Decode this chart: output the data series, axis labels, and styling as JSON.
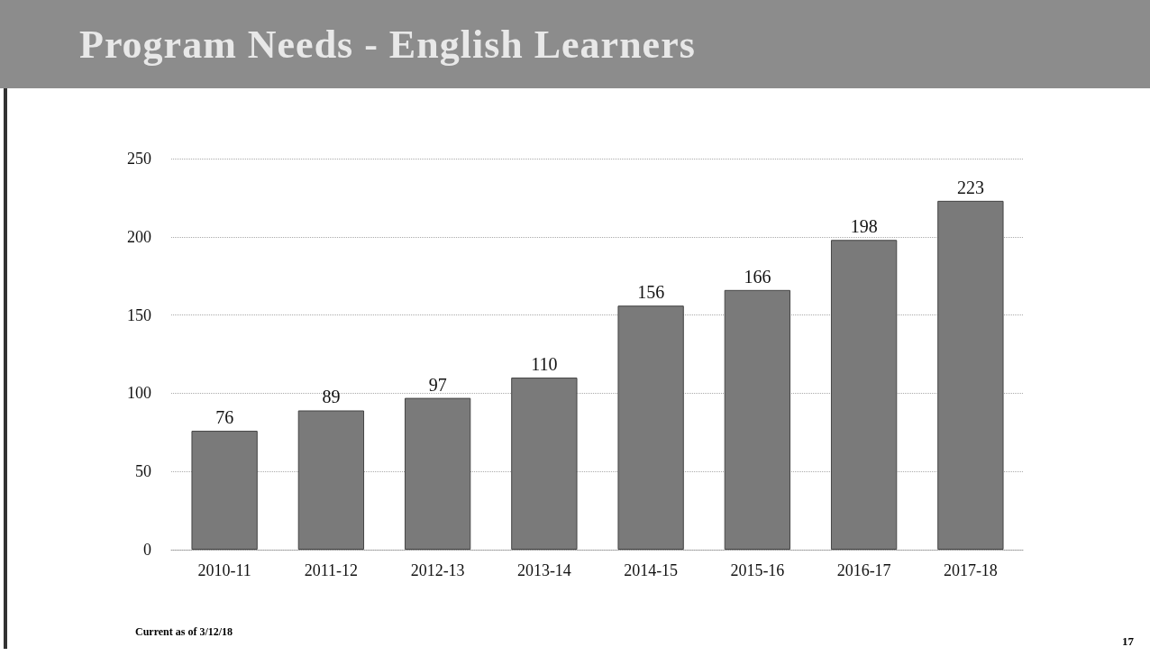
{
  "chart_data": {
    "type": "bar",
    "title": "Program Needs - English Learners",
    "categories": [
      "2010-11",
      "2011-12",
      "2012-13",
      "2013-14",
      "2014-15",
      "2015-16",
      "2016-17",
      "2017-18"
    ],
    "values": [
      76,
      89,
      97,
      110,
      156,
      166,
      198,
      223
    ],
    "color": "#7a7a7a",
    "ylim": [
      0,
      250
    ],
    "yticks": [
      0,
      50,
      100,
      150,
      200,
      250
    ],
    "grid": "y",
    "data_labels": true,
    "annotations": [
      "Current as of 3/12/18",
      "17"
    ]
  }
}
